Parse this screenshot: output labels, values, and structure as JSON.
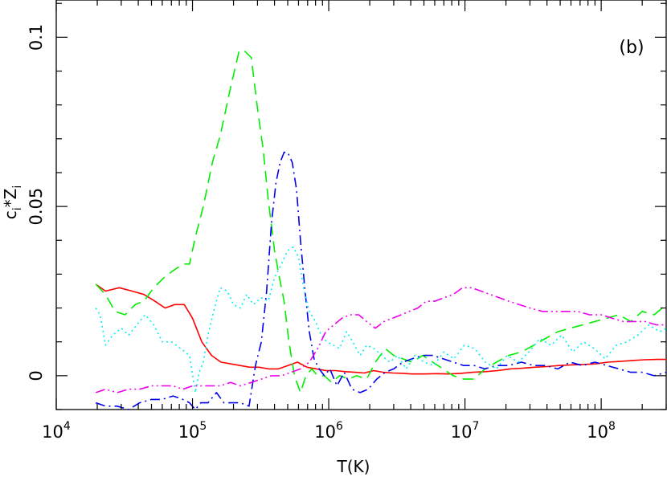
{
  "chart_data": {
    "type": "line",
    "xlabel": "T(K)",
    "ylabel": {
      "base1": "c",
      "sub1": "i",
      "mid": "*Z",
      "sub2": "i"
    },
    "panel_label": "(b)",
    "x_log_scale": true,
    "xlim": [
      10000,
      300000000
    ],
    "ylim": [
      -0.01,
      0.111
    ],
    "x_ticks": [
      {
        "base": "10",
        "exp": "4",
        "value": 10000
      },
      {
        "base": "10",
        "exp": "5",
        "value": 100000
      },
      {
        "base": "10",
        "exp": "6",
        "value": 1000000
      },
      {
        "base": "10",
        "exp": "7",
        "value": 10000000
      },
      {
        "base": "10",
        "exp": "8",
        "value": 100000000
      }
    ],
    "y_ticks": [
      {
        "label": "0",
        "value": 0
      },
      {
        "label": "0.05",
        "value": 0.05
      },
      {
        "label": "0.1",
        "value": 0.1
      }
    ],
    "grid": false,
    "series": [
      {
        "color": "#ff0000",
        "style": "solid",
        "x": [
          19500,
          23000,
          29000,
          36000,
          44000,
          53000,
          63000,
          74000,
          87000,
          100000,
          117000,
          138000,
          162000,
          190000,
          224000,
          263000,
          309000,
          363000,
          427000,
          501000,
          589000,
          692000,
          813000,
          955000,
          1120000,
          1320000,
          1550000,
          1820000,
          2140000,
          2510000,
          2950000,
          3470000,
          4070000,
          5010000,
          6170000,
          7590000,
          9330000,
          11500000,
          14100000,
          17400000,
          21400000,
          26300000,
          32400000,
          39800000,
          49000000,
          60300000,
          74100000,
          91200000,
          112000000,
          138000000,
          170000000,
          209000000,
          257000000,
          300000000
        ],
        "y": [
          0.027,
          0.025,
          0.026,
          0.025,
          0.024,
          0.022,
          0.02,
          0.021,
          0.021,
          0.017,
          0.01,
          0.006,
          0.004,
          0.0035,
          0.003,
          0.0025,
          0.0025,
          0.002,
          0.002,
          0.003,
          0.004,
          0.0025,
          0.002,
          0.0015,
          0.0015,
          0.0012,
          0.001,
          0.0008,
          0.0015,
          0.001,
          0.0008,
          0.0007,
          0.0005,
          0.0005,
          0.0006,
          0.0005,
          0.0007,
          0.001,
          0.0012,
          0.0015,
          0.002,
          0.0022,
          0.0025,
          0.0027,
          0.003,
          0.0032,
          0.0033,
          0.0035,
          0.004,
          0.0042,
          0.0045,
          0.0047,
          0.0048,
          0.0048
        ]
      },
      {
        "color": "#00ee00",
        "style": "dashed",
        "x": [
          19500,
          23000,
          27000,
          32000,
          38000,
          44000,
          52000,
          62000,
          72000,
          85000,
          95000,
          105000,
          120000,
          140000,
          160000,
          190000,
          220000,
          240000,
          270000,
          300000,
          330000,
          360000,
          400000,
          430000,
          470000,
          510000,
          560000,
          620000,
          680000,
          750000,
          830000,
          930000,
          1050000,
          1200000,
          1400000,
          1600000,
          1900000,
          2200000,
          2600000,
          3000000,
          3500000,
          4100000,
          4900000,
          5800000,
          6900000,
          8200000,
          9800000,
          11700000,
          14000000,
          17000000,
          21000000,
          26000000,
          32000000,
          39000000,
          48000000,
          59000000,
          73000000,
          90000000,
          110000000,
          135000000,
          165000000,
          200000000,
          245000000,
          300000000
        ],
        "y": [
          0.027,
          0.024,
          0.019,
          0.018,
          0.021,
          0.022,
          0.026,
          0.029,
          0.031,
          0.033,
          0.033,
          0.041,
          0.05,
          0.063,
          0.071,
          0.085,
          0.096,
          0.096,
          0.094,
          0.079,
          0.067,
          0.052,
          0.037,
          0.03,
          0.022,
          0.01,
          0.0,
          -0.005,
          0.0,
          0.002,
          0.0,
          0.0,
          -0.002,
          0.0,
          -0.001,
          0.0,
          -0.001,
          0.004,
          0.008,
          0.006,
          0.005,
          0.004,
          0.006,
          0.004,
          0.002,
          0.0,
          -0.001,
          -0.001,
          0.002,
          0.004,
          0.006,
          0.007,
          0.009,
          0.011,
          0.013,
          0.014,
          0.015,
          0.016,
          0.017,
          0.018,
          0.016,
          0.019,
          0.018,
          0.021
        ]
      },
      {
        "color": "#0000ee",
        "style": "dashdot",
        "x": [
          19500,
          23000,
          28000,
          34000,
          41000,
          50000,
          60000,
          72000,
          85000,
          95000,
          105000,
          115000,
          130000,
          150000,
          170000,
          195000,
          225000,
          260000,
          290000,
          320000,
          350000,
          380000,
          410000,
          440000,
          470000,
          500000,
          540000,
          580000,
          620000,
          670000,
          720000,
          780000,
          850000,
          930000,
          1020000,
          1150000,
          1300000,
          1480000,
          1700000,
          1950000,
          2250000,
          2600000,
          3000000,
          3500000,
          4100000,
          4900000,
          5800000,
          6900000,
          8200000,
          9800000,
          11700000,
          14000000,
          17000000,
          21000000,
          26000000,
          32000000,
          39000000,
          48000000,
          59000000,
          73000000,
          90000000,
          110000000,
          135000000,
          165000000,
          200000000,
          245000000,
          300000000
        ],
        "y": [
          -0.008,
          -0.009,
          -0.009,
          -0.01,
          -0.008,
          -0.007,
          -0.007,
          -0.006,
          -0.007,
          -0.008,
          -0.01,
          -0.008,
          -0.008,
          -0.005,
          -0.008,
          -0.008,
          -0.008,
          -0.009,
          0.003,
          0.01,
          0.025,
          0.045,
          0.057,
          0.063,
          0.066,
          0.066,
          0.063,
          0.055,
          0.04,
          0.025,
          0.013,
          0.005,
          0.002,
          0.0,
          0.002,
          -0.003,
          0.001,
          -0.004,
          -0.005,
          -0.004,
          -0.001,
          0.001,
          0.002,
          0.004,
          0.005,
          0.006,
          0.006,
          0.005,
          0.004,
          0.003,
          0.003,
          0.002,
          0.003,
          0.003,
          0.004,
          0.003,
          0.003,
          0.002,
          0.004,
          0.003,
          0.004,
          0.003,
          0.002,
          0.001,
          0.001,
          0.0,
          0.001
        ]
      },
      {
        "color": "#00eeee",
        "style": "dotted",
        "x": [
          19500,
          21000,
          23000,
          26000,
          30000,
          34000,
          39000,
          45000,
          52000,
          60000,
          70000,
          82000,
          95000,
          105000,
          112000,
          120000,
          130000,
          145000,
          160000,
          180000,
          200000,
          225000,
          250000,
          280000,
          320000,
          360000,
          400000,
          450000,
          500000,
          550000,
          600000,
          660000,
          720000,
          800000,
          880000,
          970000,
          1080000,
          1200000,
          1350000,
          1500000,
          1700000,
          1900000,
          2150000,
          2450000,
          2800000,
          3200000,
          3700000,
          4300000,
          5000000,
          5900000,
          7000000,
          8300000,
          9900000,
          11800000,
          14100000,
          17000000,
          20400000,
          24600000,
          29500000,
          35500000,
          42700000,
          51300000,
          61700000,
          74100000,
          89100000,
          107000000,
          129000000,
          155000000,
          186000000,
          224000000,
          269000000,
          300000000
        ],
        "y": [
          0.02,
          0.018,
          0.009,
          0.012,
          0.014,
          0.012,
          0.015,
          0.018,
          0.015,
          0.01,
          0.01,
          0.008,
          0.006,
          -0.005,
          0.001,
          0.004,
          0.012,
          0.02,
          0.026,
          0.025,
          0.021,
          0.02,
          0.024,
          0.021,
          0.023,
          0.022,
          0.029,
          0.033,
          0.037,
          0.038,
          0.035,
          0.025,
          0.019,
          0.016,
          0.012,
          0.01,
          0.009,
          0.008,
          0.013,
          0.01,
          0.006,
          0.009,
          0.008,
          0.006,
          0.004,
          0.006,
          0.002,
          0.006,
          0.004,
          0.003,
          0.007,
          0.005,
          0.009,
          0.008,
          0.004,
          0.002,
          0.006,
          0.004,
          0.007,
          0.011,
          0.009,
          0.012,
          0.007,
          0.01,
          0.008,
          0.005,
          0.009,
          0.01,
          0.012,
          0.015,
          0.013,
          0.014
        ]
      },
      {
        "color": "#ee00ee",
        "style": "dashdotdot",
        "x": [
          19500,
          23000,
          28000,
          34000,
          41000,
          50000,
          60000,
          72000,
          85000,
          100000,
          115000,
          135000,
          160000,
          190000,
          225000,
          270000,
          320000,
          380000,
          450000,
          530000,
          620000,
          720000,
          830000,
          950000,
          1090000,
          1250000,
          1440000,
          1660000,
          1900000,
          2200000,
          2550000,
          2950000,
          3400000,
          3900000,
          4500000,
          5200000,
          6000000,
          7000000,
          8200000,
          9600000,
          11200000,
          13100000,
          15300000,
          17900000,
          21000000,
          25000000,
          30000000,
          37000000,
          45000000,
          55000000,
          67000000,
          82000000,
          100000000,
          120000000,
          145000000,
          175000000,
          210000000,
          255000000,
          300000000
        ],
        "y": [
          -0.005,
          -0.004,
          -0.005,
          -0.004,
          -0.004,
          -0.003,
          -0.003,
          -0.003,
          -0.004,
          -0.003,
          -0.003,
          -0.003,
          -0.003,
          -0.002,
          -0.003,
          -0.002,
          -0.001,
          0.0,
          0.0,
          0.001,
          0.002,
          0.004,
          0.008,
          0.013,
          0.015,
          0.017,
          0.018,
          0.018,
          0.016,
          0.014,
          0.016,
          0.017,
          0.018,
          0.019,
          0.02,
          0.022,
          0.022,
          0.023,
          0.024,
          0.026,
          0.026,
          0.025,
          0.024,
          0.023,
          0.022,
          0.021,
          0.02,
          0.019,
          0.019,
          0.019,
          0.019,
          0.018,
          0.018,
          0.017,
          0.016,
          0.016,
          0.016,
          0.015,
          0.015
        ]
      }
    ]
  }
}
